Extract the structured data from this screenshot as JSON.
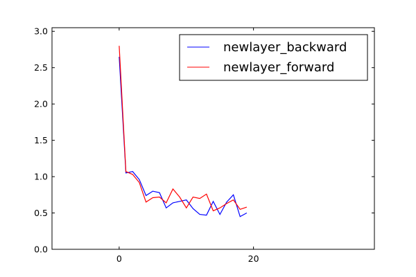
{
  "chart_data": {
    "type": "line",
    "title": "",
    "xlabel": "",
    "ylabel": "",
    "xlim": [
      -10,
      38
    ],
    "ylim": [
      0,
      3.05
    ],
    "xticks": [
      0,
      20
    ],
    "xtick_labels": [
      "0",
      "20"
    ],
    "yticks": [
      0,
      0.5,
      1,
      1.5,
      2,
      2.5,
      3
    ],
    "ytick_labels": [
      "0.0",
      "0.5",
      "1.0",
      "1.5",
      "2.0",
      "2.5",
      "3.0"
    ],
    "grid": false,
    "legend_position": "top-right",
    "x": [
      0,
      1,
      2,
      3,
      4,
      5,
      6,
      7,
      8,
      9,
      10,
      11,
      12,
      13,
      14,
      15,
      16,
      17,
      18,
      19
    ],
    "series": [
      {
        "name": "newlayer_backward",
        "color": "#0000ff",
        "values": [
          2.65,
          1.05,
          1.07,
          0.96,
          0.74,
          0.8,
          0.78,
          0.57,
          0.64,
          0.66,
          0.68,
          0.56,
          0.48,
          0.47,
          0.66,
          0.48,
          0.65,
          0.75,
          0.45,
          0.5
        ]
      },
      {
        "name": "newlayer_forward",
        "color": "#ff0000",
        "values": [
          2.8,
          1.07,
          1.03,
          0.92,
          0.65,
          0.71,
          0.72,
          0.64,
          0.83,
          0.72,
          0.57,
          0.72,
          0.7,
          0.76,
          0.53,
          0.57,
          0.63,
          0.68,
          0.55,
          0.58
        ]
      }
    ]
  }
}
